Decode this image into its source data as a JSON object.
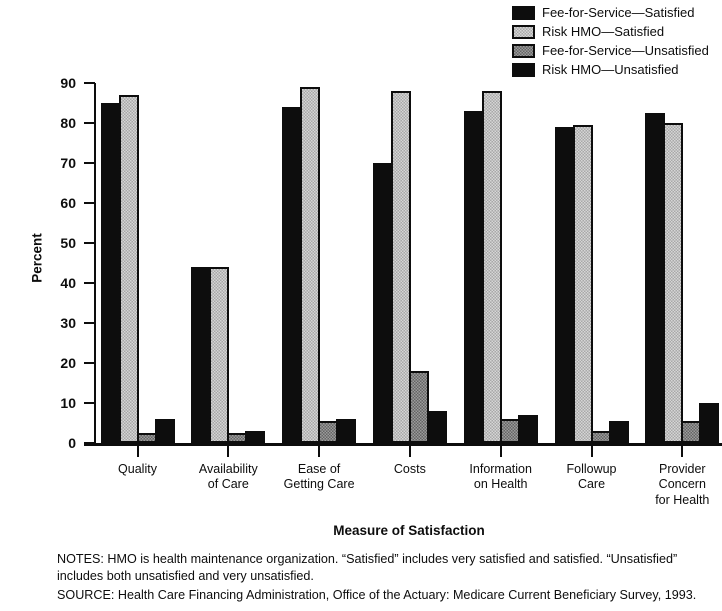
{
  "chart_data": {
    "type": "bar",
    "title": "",
    "categories": [
      "Quality",
      "Availability\nof Care",
      "Ease of\nGetting Care",
      "Costs",
      "Information\non Health",
      "Followup\nCare",
      "Provider\nConcern\nfor Health"
    ],
    "series": [
      {
        "name": "Fee-for-Service—Satisfied",
        "swatch": "solid-black",
        "values": [
          85,
          44,
          84,
          70,
          83,
          79,
          82.5
        ]
      },
      {
        "name": "Risk HMO—Satisfied",
        "swatch": "light-checker",
        "values": [
          87,
          44,
          89,
          88,
          88,
          79.5,
          80
        ]
      },
      {
        "name": "Fee-for-Service—Unsatisfied",
        "swatch": "dark-checker",
        "values": [
          2.5,
          2.5,
          5.5,
          18,
          6,
          3,
          5.5
        ]
      },
      {
        "name": "Risk HMO—Unsatisfied",
        "swatch": "solid-black",
        "values": [
          6,
          3,
          6,
          8,
          7,
          5.5,
          10
        ]
      }
    ],
    "xlabel": "Measure of Satisfaction",
    "ylabel": "Percent",
    "ylim": [
      0,
      90
    ],
    "yticks": [
      0,
      10,
      20,
      30,
      40,
      50,
      60,
      70,
      80,
      90
    ],
    "grid": false,
    "legend_position": "top-right",
    "colors": {
      "bar_black": "#0d0d0d",
      "light_gray_fill": "#d6d6d6",
      "light_gray_dot": "#a8a8a8",
      "dark_gray_fill": "#9c9c9c",
      "dark_gray_dot": "#646464"
    }
  },
  "notes": "NOTES: HMO is health maintenance organization. “Satisfied” includes very satisfied and satisfied. “Unsatisfied” includes both unsatisfied and very unsatisfied.",
  "source": "SOURCE: Health Care Financing Administration, Office of the Actuary: Medicare Current Beneficiary Survey, 1993."
}
